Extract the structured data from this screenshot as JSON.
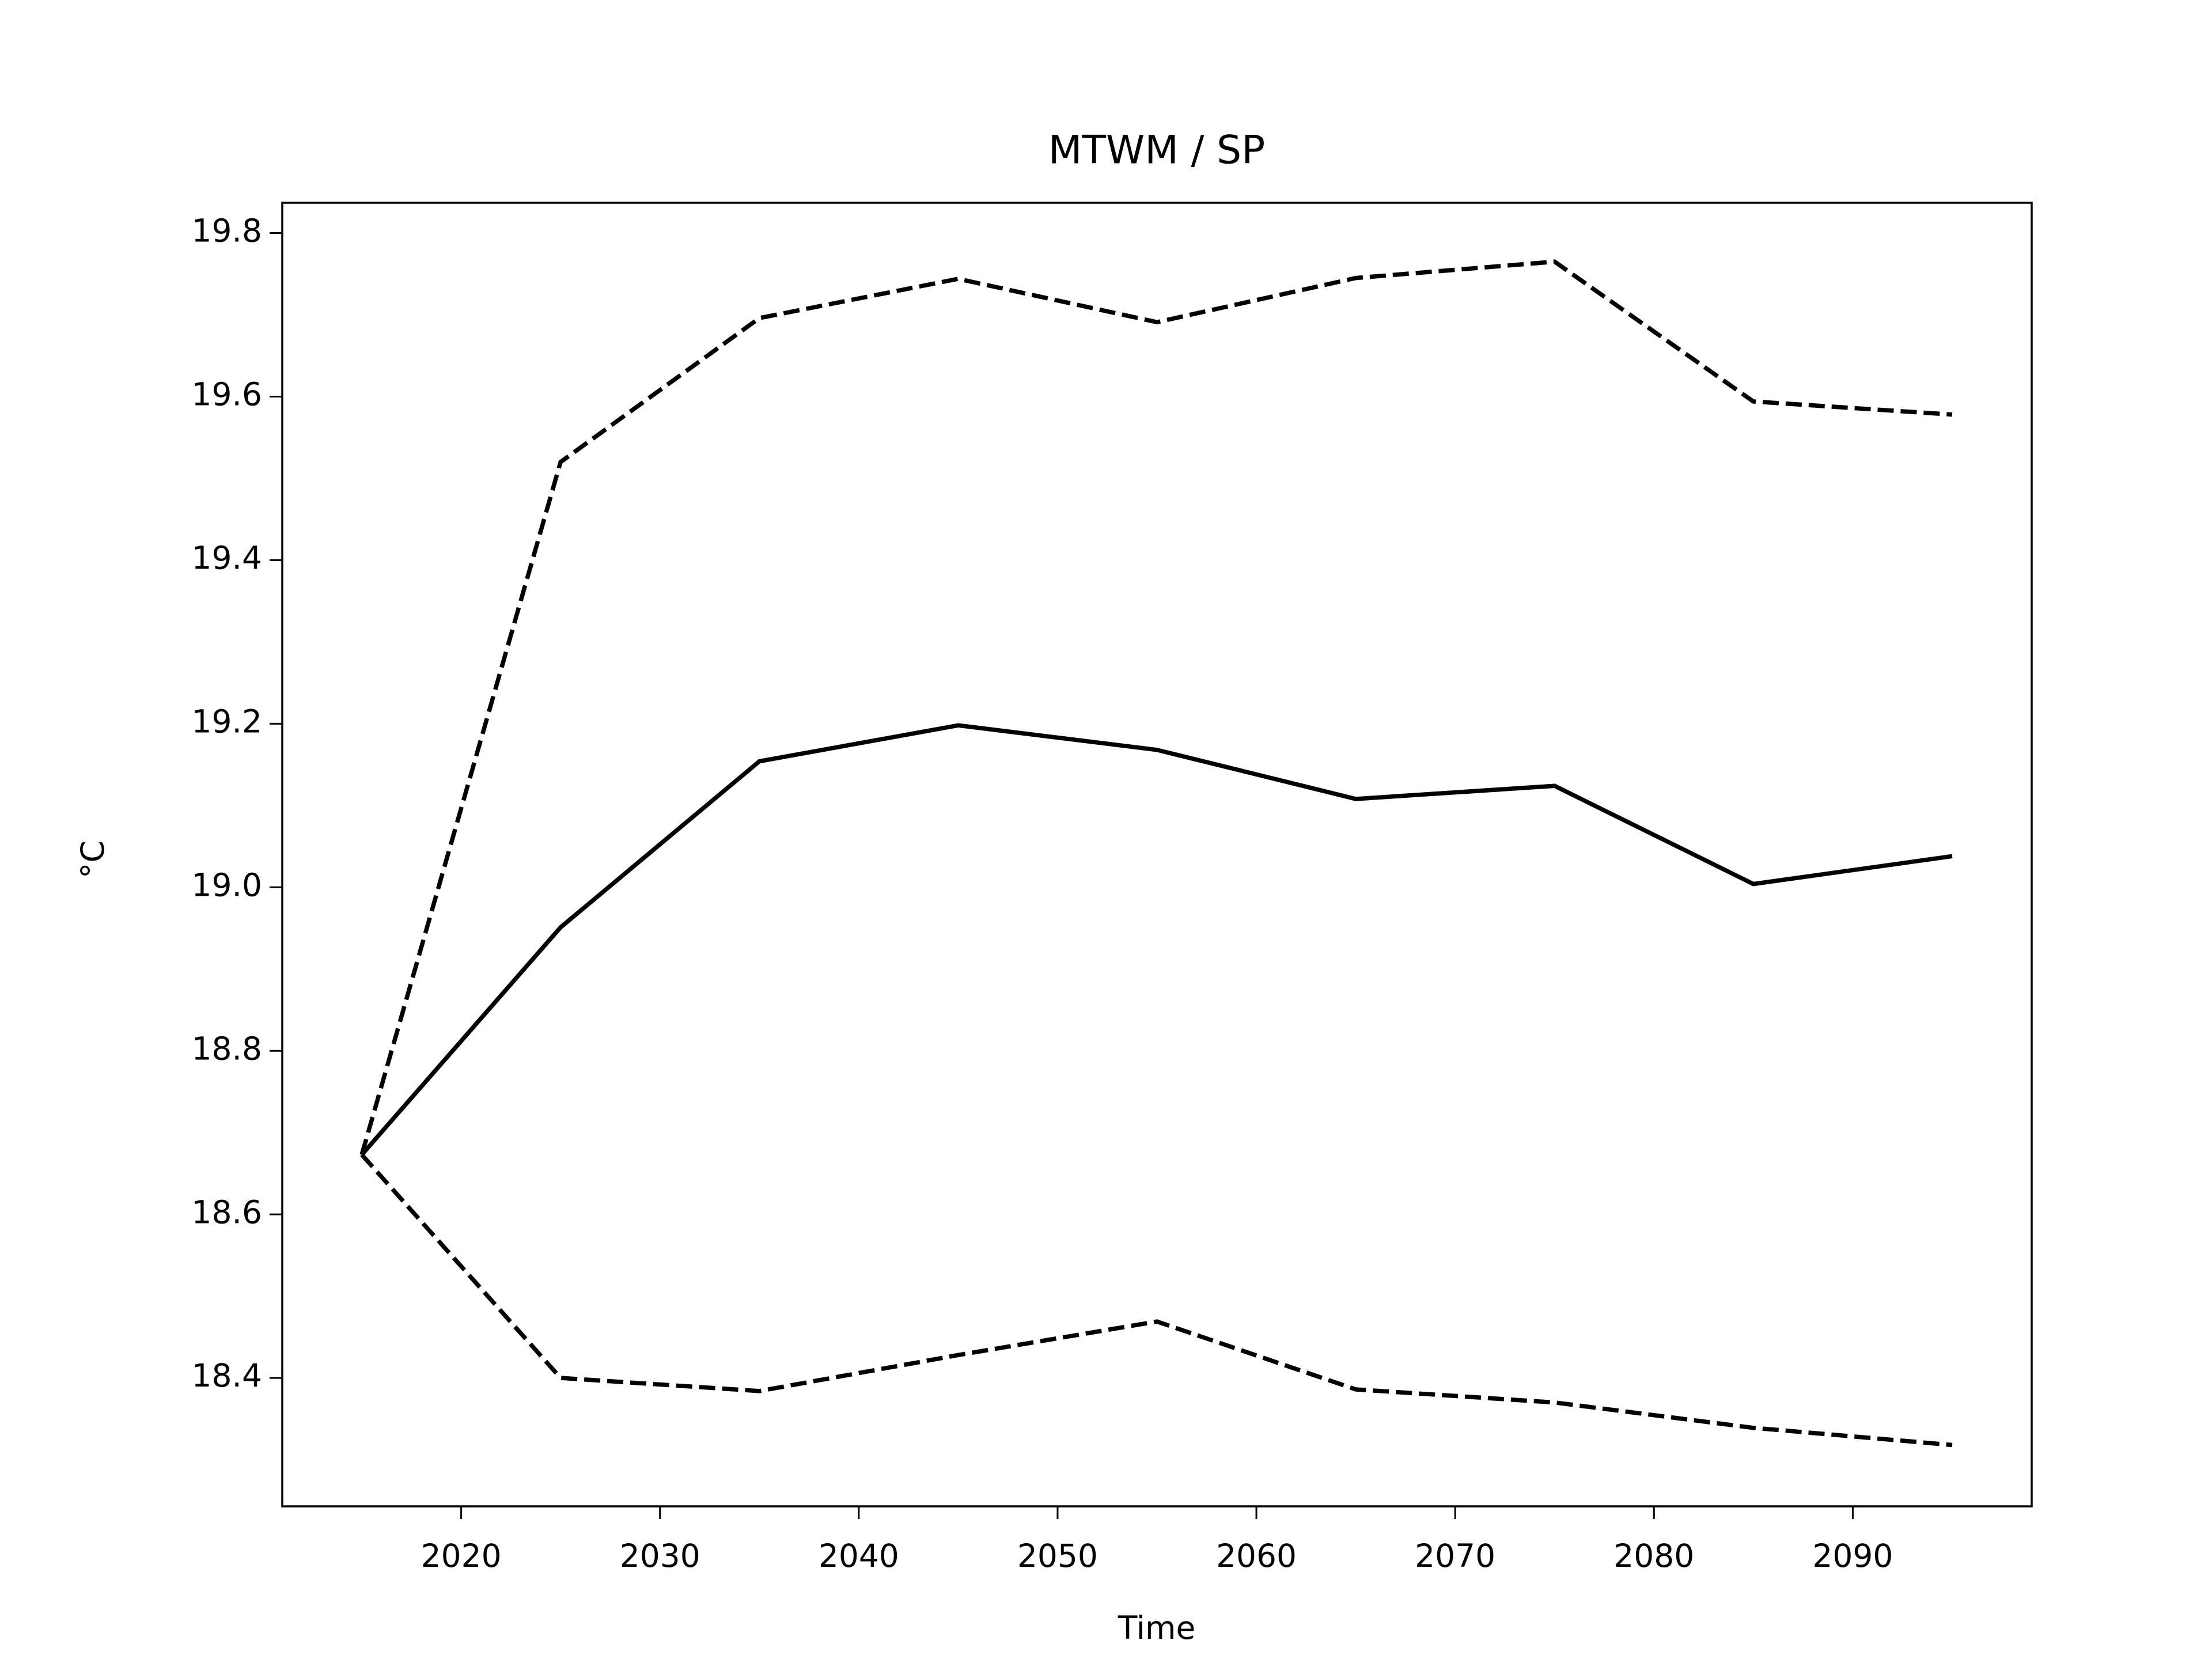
{
  "chart_data": {
    "type": "line",
    "title": "MTWM / SP",
    "x_label": "Time",
    "y_label": "°C",
    "x": [
      2015,
      2025,
      2035,
      2045,
      2055,
      2065,
      2075,
      2085,
      2095
    ],
    "series": [
      {
        "color": "#000000",
        "style": "solid",
        "values": [
          18.673,
          18.951,
          19.154,
          19.198,
          19.168,
          19.108,
          19.124,
          19.004,
          19.038
        ]
      },
      {
        "color": "#000000",
        "style": "dashed",
        "values": [
          18.673,
          19.52,
          19.696,
          19.744,
          19.691,
          19.745,
          19.765,
          19.594,
          19.578
        ]
      },
      {
        "color": "#000000",
        "style": "dashed",
        "values": [
          18.673,
          18.4,
          18.384,
          18.428,
          18.469,
          18.386,
          18.37,
          18.339,
          18.318
        ]
      }
    ],
    "xlim": [
      2011,
      2099
    ],
    "xticks": [
      2020,
      2030,
      2040,
      2050,
      2060,
      2070,
      2080,
      2090
    ],
    "ylim": [
      18.243,
      19.837
    ],
    "yticks": [
      18.4,
      18.6,
      18.8,
      19.0,
      19.2,
      19.4,
      19.6,
      19.8
    ],
    "grid": false
  }
}
